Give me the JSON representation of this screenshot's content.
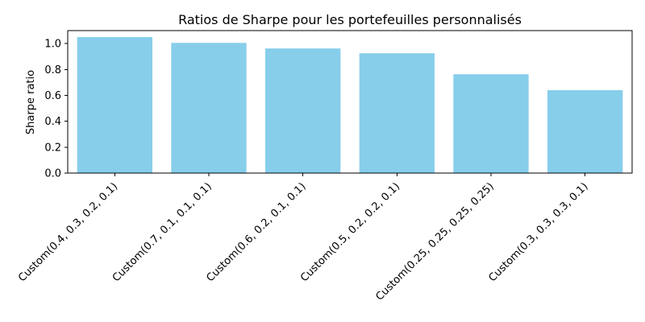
{
  "chart_data": {
    "type": "bar",
    "title": "Ratios de Sharpe pour les portefeuilles personnalisés",
    "xlabel": "",
    "ylabel": "Sharpe ratio",
    "categories": [
      "Custom(0.4, 0.3, 0.2, 0.1)",
      "Custom(0.7, 0.1, 0.1, 0.1)",
      "Custom(0.6, 0.2, 0.1, 0.1)",
      "Custom(0.5, 0.2, 0.2, 0.1)",
      "Custom(0.25, 0.25, 0.25, 0.25)",
      "Custom(0.3, 0.3, 0.3, 0.1)"
    ],
    "values": [
      1.05,
      1.005,
      0.962,
      0.925,
      0.763,
      0.64
    ],
    "ylim": [
      0,
      1.1
    ],
    "yticks": [
      0.0,
      0.2,
      0.4,
      0.6,
      0.8,
      1.0
    ],
    "ytick_labels": [
      "0.0",
      "0.2",
      "0.4",
      "0.6",
      "0.8",
      "1.0"
    ],
    "bar_color": "#87ceeb",
    "grid": false,
    "legend": "none",
    "xtick_rotation": "45 degrees"
  }
}
